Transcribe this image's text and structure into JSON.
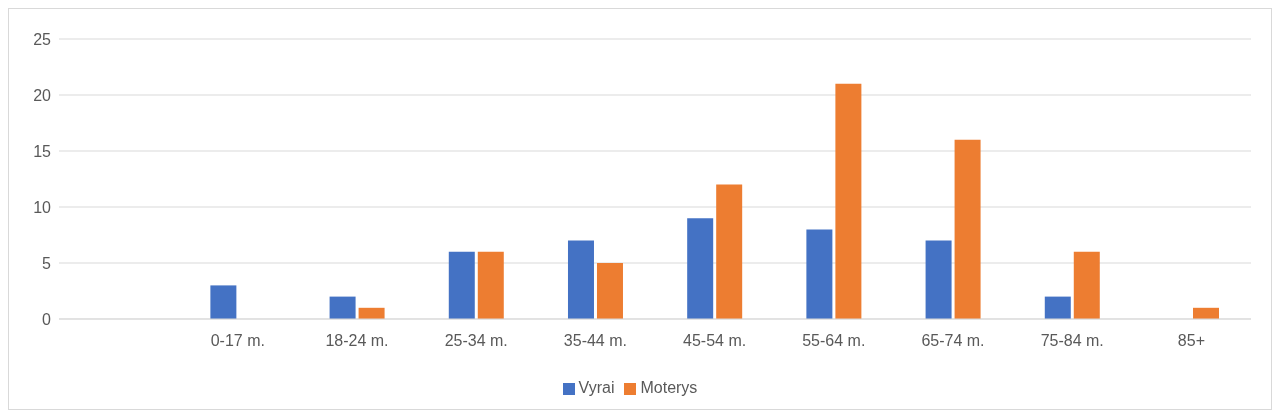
{
  "chart_data": {
    "type": "bar",
    "categories": [
      null,
      "0-17 m.",
      "18-24 m.",
      "25-34 m.",
      "35-44 m.",
      "45-54 m.",
      "55-64 m.",
      "65-74 m.",
      "75-84 m.",
      "85+"
    ],
    "series": [
      {
        "name": "Vyrai",
        "color": "#4472c4",
        "values": [
          null,
          3,
          2,
          6,
          7,
          9,
          8,
          7,
          2,
          0
        ]
      },
      {
        "name": "Moterys",
        "color": "#ed7d31",
        "values": [
          null,
          0,
          1,
          6,
          5,
          12,
          21,
          16,
          6,
          1
        ]
      }
    ],
    "ylim": [
      0,
      25
    ],
    "yticks": [
      0,
      5,
      10,
      15,
      20,
      25
    ],
    "grid": "y",
    "legend": "bottom"
  }
}
